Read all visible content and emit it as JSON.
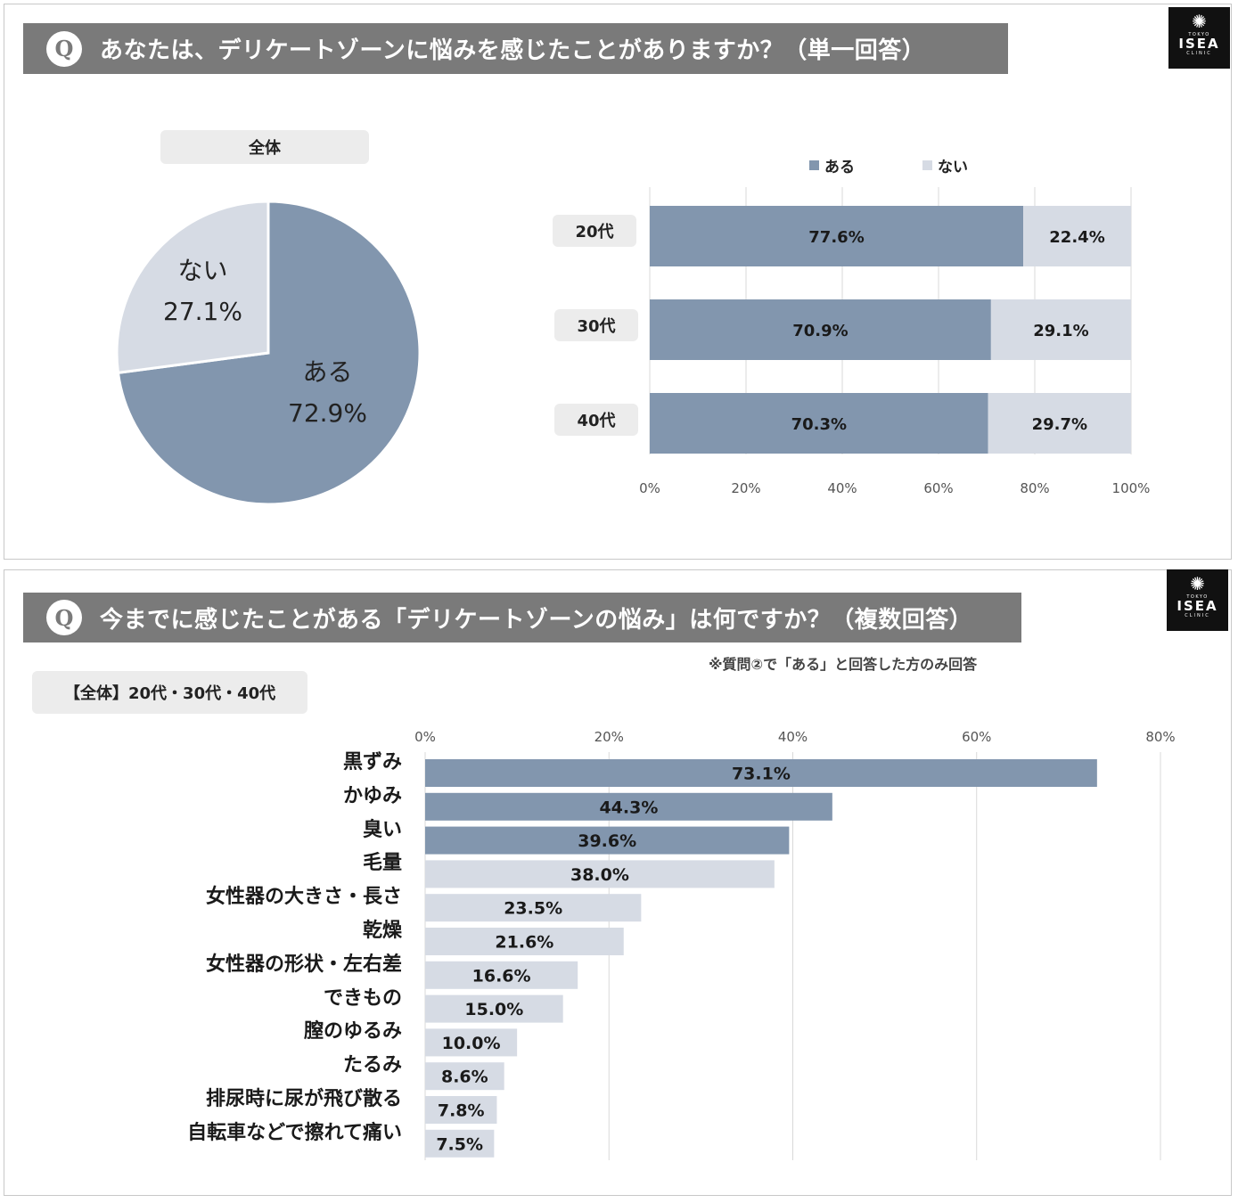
{
  "panel1": {
    "question_mark": "Q",
    "question": "あなたは、デリケートゾーンに悩みを感じたことがありますか？（単一回答）",
    "logo": {
      "tokyo": "TOKYO",
      "brand": "ISEA",
      "clinic": "CLINIC"
    }
  },
  "panel2": {
    "question_mark": "Q",
    "question": "今までに感じたことがある「デリケートゾーンの悩み」は何ですか？（複数回答）",
    "note": "※質問②で「ある」と回答した方のみ回答",
    "group_label": "【全体】20代・30代・40代",
    "logo": {
      "tokyo": "TOKYO",
      "brand": "ISEA",
      "clinic": "CLINIC"
    }
  },
  "colors": {
    "dark": "#8296ae",
    "light": "#d6dbe4",
    "grid": "#d9d9d9",
    "header": "#7a7a7a"
  },
  "chart_data": [
    {
      "type": "pie",
      "title": "全体",
      "slices": [
        {
          "label": "ある",
          "value": 72.9,
          "display": "72.9%"
        },
        {
          "label": "ない",
          "value": 27.1,
          "display": "27.1%"
        }
      ]
    },
    {
      "type": "bar",
      "orientation": "horizontal",
      "stacked": true,
      "legend": [
        "ある",
        "ない"
      ],
      "legend_position": "top",
      "categories": [
        "20代",
        "30代",
        "40代"
      ],
      "series": [
        {
          "name": "ある",
          "values": [
            77.6,
            70.9,
            70.3
          ],
          "labels": [
            "77.6%",
            "70.9%",
            "70.3%"
          ]
        },
        {
          "name": "ない",
          "values": [
            22.4,
            29.1,
            29.7
          ],
          "labels": [
            "22.4%",
            "29.1%",
            "29.7%"
          ]
        }
      ],
      "xlim": [
        0,
        100
      ],
      "xticks": [
        "0%",
        "20%",
        "40%",
        "60%",
        "80%",
        "100%"
      ],
      "grid": true
    },
    {
      "type": "bar",
      "orientation": "horizontal",
      "categories": [
        "黒ずみ",
        "かゆみ",
        "臭い",
        "毛量",
        "女性器の大きさ・長さ",
        "乾燥",
        "女性器の形状・左右差",
        "できもの",
        "膣のゆるみ",
        "たるみ",
        "排尿時に尿が飛び散る",
        "自転車などで擦れて痛い"
      ],
      "values": [
        73.1,
        44.3,
        39.6,
        38.0,
        23.5,
        21.6,
        16.6,
        15.0,
        10.0,
        8.6,
        7.8,
        7.5
      ],
      "labels": [
        "73.1%",
        "44.3%",
        "39.6%",
        "38.0%",
        "23.5%",
        "21.6%",
        "16.6%",
        "15.0%",
        "10.0%",
        "8.6%",
        "7.8%",
        "7.5%"
      ],
      "highlighted_top": 3,
      "xlim": [
        0,
        80
      ],
      "xticks": [
        "0%",
        "20%",
        "40%",
        "60%",
        "80%"
      ],
      "grid": true
    }
  ]
}
